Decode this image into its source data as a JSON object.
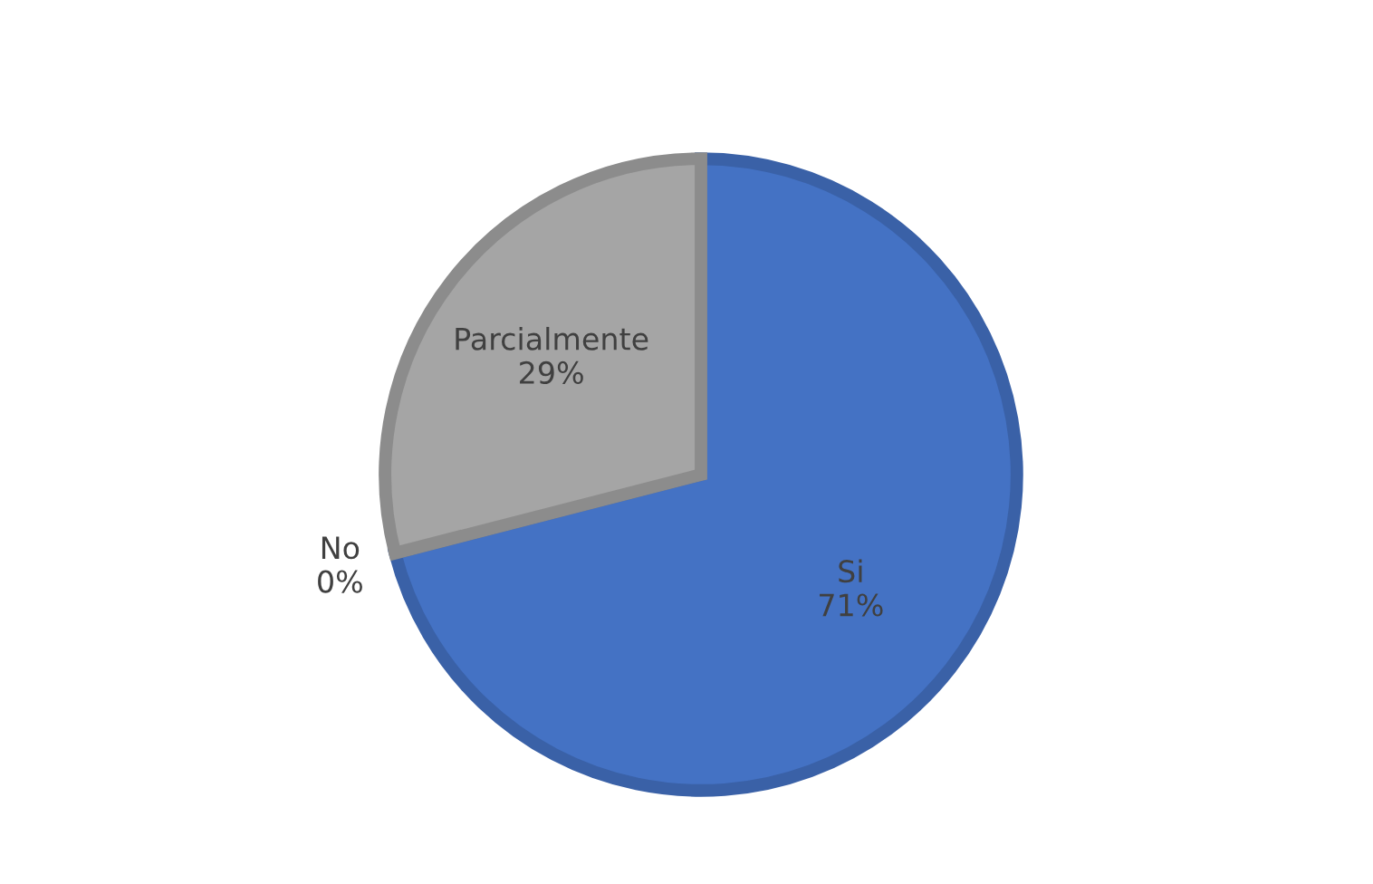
{
  "chart_data": {
    "type": "pie",
    "categories": [
      "Si",
      "No",
      "Parcialmente"
    ],
    "values": [
      71,
      0,
      29
    ],
    "value_labels": [
      "71%",
      "0%",
      "29%"
    ],
    "colors": [
      "#4472c4",
      "#ed7d31",
      "#a5a5a5"
    ],
    "legend": false
  }
}
